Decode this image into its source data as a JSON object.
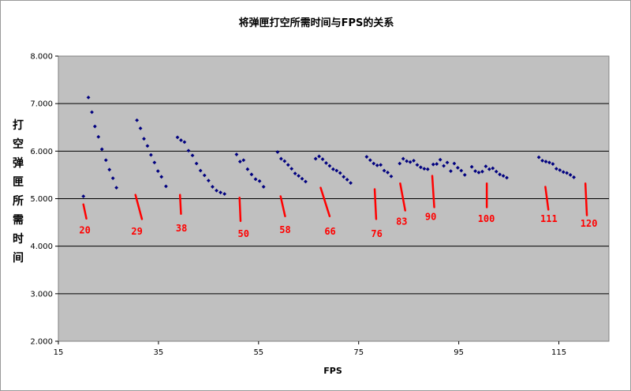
{
  "chart_data": {
    "type": "scatter",
    "title": "将弹匣打空所需时间与FPS的关系",
    "xlabel": "FPS",
    "ylabel": "打空弹匣所需时间",
    "xlim": [
      15,
      125
    ],
    "ylim": [
      2.0,
      8.0
    ],
    "x_ticks": [
      "15",
      "35",
      "55",
      "75",
      "95",
      "115"
    ],
    "y_ticks": [
      "2.000",
      "3.000",
      "4.000",
      "5.000",
      "6.000",
      "7.000",
      "8.000"
    ],
    "grid": "horizontal",
    "legend": "none",
    "series": [
      {
        "marker": "diamond",
        "color": "#00007f",
        "points": [
          [
            20.0,
            5.05
          ],
          [
            21.0,
            7.13
          ],
          [
            21.7,
            6.82
          ],
          [
            22.3,
            6.52
          ],
          [
            23.0,
            6.3
          ],
          [
            23.7,
            6.04
          ],
          [
            24.5,
            5.81
          ],
          [
            25.2,
            5.61
          ],
          [
            25.9,
            5.43
          ],
          [
            26.6,
            5.23
          ],
          [
            30.7,
            6.65
          ],
          [
            31.4,
            6.48
          ],
          [
            32.1,
            6.26
          ],
          [
            32.8,
            6.11
          ],
          [
            33.5,
            5.92
          ],
          [
            34.2,
            5.76
          ],
          [
            34.9,
            5.58
          ],
          [
            35.6,
            5.46
          ],
          [
            36.5,
            5.26
          ],
          [
            38.8,
            6.29
          ],
          [
            39.5,
            6.23
          ],
          [
            40.2,
            6.19
          ],
          [
            41.0,
            6.01
          ],
          [
            41.8,
            5.91
          ],
          [
            42.6,
            5.74
          ],
          [
            43.4,
            5.59
          ],
          [
            44.2,
            5.49
          ],
          [
            45.0,
            5.38
          ],
          [
            45.8,
            5.25
          ],
          [
            46.6,
            5.17
          ],
          [
            47.4,
            5.13
          ],
          [
            48.2,
            5.1
          ],
          [
            50.6,
            5.93
          ],
          [
            51.3,
            5.78
          ],
          [
            52.0,
            5.81
          ],
          [
            52.8,
            5.62
          ],
          [
            53.6,
            5.51
          ],
          [
            54.4,
            5.41
          ],
          [
            55.2,
            5.37
          ],
          [
            56.0,
            5.25
          ],
          [
            58.8,
            5.98
          ],
          [
            59.5,
            5.84
          ],
          [
            60.2,
            5.79
          ],
          [
            60.9,
            5.71
          ],
          [
            61.6,
            5.63
          ],
          [
            62.3,
            5.53
          ],
          [
            63.0,
            5.48
          ],
          [
            63.7,
            5.42
          ],
          [
            64.4,
            5.36
          ],
          [
            66.4,
            5.84
          ],
          [
            67.1,
            5.89
          ],
          [
            67.8,
            5.83
          ],
          [
            68.5,
            5.75
          ],
          [
            69.2,
            5.69
          ],
          [
            69.9,
            5.62
          ],
          [
            70.6,
            5.59
          ],
          [
            71.3,
            5.54
          ],
          [
            72.0,
            5.46
          ],
          [
            72.7,
            5.4
          ],
          [
            73.4,
            5.33
          ],
          [
            76.6,
            5.88
          ],
          [
            77.3,
            5.81
          ],
          [
            78.0,
            5.74
          ],
          [
            78.7,
            5.7
          ],
          [
            79.4,
            5.71
          ],
          [
            80.1,
            5.59
          ],
          [
            80.8,
            5.55
          ],
          [
            81.5,
            5.47
          ],
          [
            83.2,
            5.74
          ],
          [
            83.9,
            5.84
          ],
          [
            84.6,
            5.79
          ],
          [
            85.3,
            5.77
          ],
          [
            86.0,
            5.8
          ],
          [
            86.7,
            5.71
          ],
          [
            87.4,
            5.66
          ],
          [
            88.1,
            5.63
          ],
          [
            88.8,
            5.62
          ],
          [
            89.9,
            5.72
          ],
          [
            90.6,
            5.73
          ],
          [
            91.3,
            5.82
          ],
          [
            92.0,
            5.69
          ],
          [
            92.7,
            5.76
          ],
          [
            93.4,
            5.58
          ],
          [
            94.1,
            5.74
          ],
          [
            94.8,
            5.65
          ],
          [
            95.5,
            5.59
          ],
          [
            96.2,
            5.5
          ],
          [
            97.6,
            5.67
          ],
          [
            98.3,
            5.58
          ],
          [
            99.0,
            5.55
          ],
          [
            99.7,
            5.57
          ],
          [
            100.4,
            5.68
          ],
          [
            101.1,
            5.62
          ],
          [
            101.8,
            5.64
          ],
          [
            102.5,
            5.57
          ],
          [
            103.2,
            5.51
          ],
          [
            103.9,
            5.48
          ],
          [
            104.6,
            5.44
          ],
          [
            111.0,
            5.87
          ],
          [
            111.7,
            5.8
          ],
          [
            112.4,
            5.78
          ],
          [
            113.1,
            5.76
          ],
          [
            113.8,
            5.73
          ],
          [
            114.5,
            5.63
          ],
          [
            115.2,
            5.6
          ],
          [
            115.9,
            5.56
          ],
          [
            116.6,
            5.54
          ],
          [
            117.3,
            5.5
          ],
          [
            118.0,
            5.45
          ]
        ]
      }
    ],
    "annotations": [
      {
        "text": "20",
        "x": 20.3,
        "y": 4.27,
        "line": [
          [
            20.0,
            4.88
          ],
          [
            20.6,
            4.58
          ]
        ]
      },
      {
        "text": "29",
        "x": 30.7,
        "y": 4.24,
        "line": [
          [
            30.4,
            5.08
          ],
          [
            31.7,
            4.57
          ]
        ]
      },
      {
        "text": "38",
        "x": 39.6,
        "y": 4.31,
        "line": [
          [
            39.3,
            5.08
          ],
          [
            39.5,
            4.68
          ]
        ]
      },
      {
        "text": "50",
        "x": 52.0,
        "y": 4.19,
        "line": [
          [
            51.2,
            5.02
          ],
          [
            51.4,
            4.53
          ]
        ]
      },
      {
        "text": "58",
        "x": 60.3,
        "y": 4.28,
        "line": [
          [
            59.4,
            5.05
          ],
          [
            60.3,
            4.63
          ]
        ]
      },
      {
        "text": "66",
        "x": 69.3,
        "y": 4.24,
        "line": [
          [
            67.4,
            5.23
          ],
          [
            69.2,
            4.63
          ]
        ]
      },
      {
        "text": "76",
        "x": 78.6,
        "y": 4.19,
        "line": [
          [
            78.2,
            5.2
          ],
          [
            78.5,
            4.57
          ]
        ]
      },
      {
        "text": "83",
        "x": 83.6,
        "y": 4.45,
        "line": [
          [
            83.3,
            5.32
          ],
          [
            84.3,
            4.75
          ]
        ]
      },
      {
        "text": "90",
        "x": 89.4,
        "y": 4.55,
        "line": [
          [
            89.7,
            5.48
          ],
          [
            90.1,
            4.82
          ]
        ]
      },
      {
        "text": "100",
        "x": 100.5,
        "y": 4.51,
        "line": [
          [
            100.6,
            5.32
          ],
          [
            100.6,
            4.82
          ]
        ]
      },
      {
        "text": "111",
        "x": 113.0,
        "y": 4.51,
        "line": [
          [
            112.3,
            5.25
          ],
          [
            112.9,
            4.77
          ]
        ]
      },
      {
        "text": "120",
        "x": 121.0,
        "y": 4.41,
        "line": [
          [
            120.3,
            5.32
          ],
          [
            120.6,
            4.65
          ]
        ]
      }
    ]
  }
}
